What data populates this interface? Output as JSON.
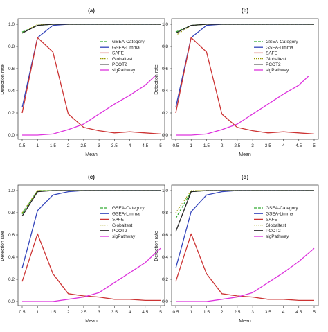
{
  "figure": {
    "ylabel": "Detection rate",
    "xlabel": "Mean"
  },
  "chart_data": [
    {
      "type": "line",
      "panel": "(a)",
      "title": "(a)",
      "xlabel": "Mean",
      "ylabel": "Detection rate",
      "x": [
        0.5,
        1,
        1.5,
        2,
        2.5,
        3,
        3.5,
        4,
        4.5,
        5
      ],
      "xticks": [
        "0.5",
        "1",
        "1.5",
        "2",
        "2.5",
        "3",
        "3.5",
        "4",
        "4.5",
        "5"
      ],
      "yticks": [
        "0.0",
        "0.2",
        "0.4",
        "0.6",
        "0.8",
        "1.0"
      ],
      "xlim": [
        0.5,
        5
      ],
      "ylim": [
        0,
        1
      ],
      "grid": false,
      "legend_position": "right",
      "series": [
        {
          "name": "GSEA-Category",
          "color": "#33aa33",
          "dash": "dashed",
          "values": [
            0.93,
            0.99,
            1.0,
            1.0,
            1.0,
            1.0,
            1.0,
            1.0,
            1.0,
            1.0
          ]
        },
        {
          "name": "GSEA-Limma",
          "color": "#3344bb",
          "dash": "solid",
          "values": [
            0.25,
            0.88,
            0.99,
            1.0,
            1.0,
            1.0,
            1.0,
            1.0,
            1.0,
            1.0
          ]
        },
        {
          "name": "SAFE",
          "color": "#cc3333",
          "dash": "solid",
          "values": [
            0.2,
            0.88,
            0.75,
            0.19,
            0.07,
            0.04,
            0.02,
            0.03,
            0.02,
            0.01
          ]
        },
        {
          "name": "Globaltest",
          "color": "#999900",
          "dash": "dotted",
          "values": [
            0.92,
            1.0,
            1.0,
            1.0,
            1.0,
            1.0,
            1.0,
            1.0,
            1.0,
            1.0
          ]
        },
        {
          "name": "PCOT2",
          "color": "#222222",
          "dash": "solid",
          "values": [
            0.92,
            0.99,
            1.0,
            1.0,
            1.0,
            1.0,
            1.0,
            1.0,
            1.0,
            1.0
          ]
        },
        {
          "name": "sigPathway",
          "color": "#dd33dd",
          "dash": "solid",
          "values": [
            0.0,
            0.0,
            0.01,
            0.05,
            0.1,
            0.19,
            0.28,
            0.36,
            0.45,
            0.58
          ]
        }
      ]
    },
    {
      "type": "line",
      "panel": "(b)",
      "title": "(b)",
      "xlabel": "Mean",
      "ylabel": "Detection rate",
      "x": [
        0.5,
        1,
        1.5,
        2,
        2.5,
        3,
        3.5,
        4,
        4.5,
        5
      ],
      "xticks": [
        "0.5",
        "1",
        "1.5",
        "2",
        "2.5",
        "3",
        "3.5",
        "4",
        "4.5",
        "5"
      ],
      "yticks": [
        "0.0",
        "0.2",
        "0.4",
        "0.6",
        "0.8",
        "1.0"
      ],
      "xlim": [
        0.5,
        5
      ],
      "ylim": [
        0,
        1
      ],
      "grid": false,
      "legend_position": "right",
      "series": [
        {
          "name": "GSEA-Category",
          "color": "#33aa33",
          "dash": "dashed",
          "values": [
            0.93,
            0.99,
            1.0,
            1.0,
            1.0,
            1.0,
            1.0,
            1.0,
            1.0,
            1.0
          ]
        },
        {
          "name": "GSEA-Limma",
          "color": "#3344bb",
          "dash": "solid",
          "values": [
            0.25,
            0.88,
            0.99,
            1.0,
            1.0,
            1.0,
            1.0,
            1.0,
            1.0,
            1.0
          ]
        },
        {
          "name": "SAFE",
          "color": "#cc3333",
          "dash": "solid",
          "values": [
            0.2,
            0.88,
            0.75,
            0.19,
            0.07,
            0.04,
            0.02,
            0.03,
            0.02,
            0.01
          ]
        },
        {
          "name": "Globaltest",
          "color": "#999900",
          "dash": "dotted",
          "values": [
            0.9,
            0.99,
            1.0,
            1.0,
            1.0,
            1.0,
            1.0,
            1.0,
            1.0,
            1.0
          ]
        },
        {
          "name": "PCOT2",
          "color": "#222222",
          "dash": "solid",
          "values": [
            0.92,
            0.99,
            1.0,
            1.0,
            1.0,
            1.0,
            1.0,
            1.0,
            1.0,
            1.0
          ]
        },
        {
          "name": "sigPathway",
          "color": "#dd33dd",
          "dash": "solid",
          "values": [
            0.0,
            0.0,
            0.01,
            0.05,
            0.1,
            0.19,
            0.28,
            0.37,
            0.45,
            0.58
          ]
        }
      ]
    },
    {
      "type": "line",
      "panel": "(c)",
      "title": "(c)",
      "xlabel": "Mean",
      "ylabel": "Detection rate",
      "x": [
        0.5,
        1,
        1.5,
        2,
        2.5,
        3,
        3.5,
        4,
        4.5,
        5
      ],
      "xticks": [
        "0.5",
        "1",
        "1.5",
        "2",
        "2.5",
        "3",
        "3.5",
        "4",
        "4.5",
        "5"
      ],
      "yticks": [
        "0.0",
        "0.2",
        "0.4",
        "0.6",
        "0.8",
        "1.0"
      ],
      "xlim": [
        0.5,
        5
      ],
      "ylim": [
        0,
        1
      ],
      "grid": false,
      "legend_position": "right",
      "series": [
        {
          "name": "GSEA-Category",
          "color": "#33aa33",
          "dash": "dashed",
          "values": [
            0.79,
            1.0,
            1.0,
            1.0,
            1.0,
            1.0,
            1.0,
            1.0,
            1.0,
            1.0
          ]
        },
        {
          "name": "GSEA-Limma",
          "color": "#3344bb",
          "dash": "solid",
          "values": [
            0.3,
            0.82,
            0.96,
            0.99,
            1.0,
            1.0,
            1.0,
            1.0,
            1.0,
            1.0
          ]
        },
        {
          "name": "SAFE",
          "color": "#cc3333",
          "dash": "solid",
          "values": [
            0.18,
            0.61,
            0.25,
            0.07,
            0.05,
            0.04,
            0.02,
            0.02,
            0.01,
            0.01
          ]
        },
        {
          "name": "Globaltest",
          "color": "#999900",
          "dash": "dotted",
          "values": [
            0.8,
            1.0,
            1.0,
            1.0,
            1.0,
            1.0,
            1.0,
            1.0,
            1.0,
            1.0
          ]
        },
        {
          "name": "PCOT2",
          "color": "#222222",
          "dash": "solid",
          "values": [
            0.77,
            0.99,
            1.0,
            1.0,
            1.0,
            1.0,
            1.0,
            1.0,
            1.0,
            1.0
          ]
        },
        {
          "name": "sigPathway",
          "color": "#dd33dd",
          "dash": "solid",
          "values": [
            0.0,
            0.0,
            0.0,
            0.02,
            0.04,
            0.08,
            0.17,
            0.26,
            0.35,
            0.48
          ]
        }
      ]
    },
    {
      "type": "line",
      "panel": "(d)",
      "title": "(d)",
      "xlabel": "Mean",
      "ylabel": "Detection rate",
      "x": [
        0.5,
        1,
        1.5,
        2,
        2.5,
        3,
        3.5,
        4,
        4.5,
        5
      ],
      "xticks": [
        "0.5",
        "1",
        "1.5",
        "2",
        "2.5",
        "3",
        "3.5",
        "4",
        "4.5",
        "5"
      ],
      "yticks": [
        "0.0",
        "0.2",
        "0.4",
        "0.6",
        "0.8",
        "1.0"
      ],
      "xlim": [
        0.5,
        5
      ],
      "ylim": [
        0,
        1
      ],
      "grid": false,
      "legend_position": "right",
      "series": [
        {
          "name": "GSEA-Category",
          "color": "#33aa33",
          "dash": "dashed",
          "values": [
            0.75,
            0.99,
            1.0,
            1.0,
            1.0,
            1.0,
            1.0,
            1.0,
            1.0,
            1.0
          ]
        },
        {
          "name": "GSEA-Limma",
          "color": "#3344bb",
          "dash": "solid",
          "values": [
            0.3,
            0.81,
            0.96,
            0.99,
            1.0,
            1.0,
            1.0,
            1.0,
            1.0,
            1.0
          ]
        },
        {
          "name": "SAFE",
          "color": "#cc3333",
          "dash": "solid",
          "values": [
            0.18,
            0.61,
            0.25,
            0.07,
            0.05,
            0.04,
            0.02,
            0.02,
            0.01,
            0.01
          ]
        },
        {
          "name": "Globaltest",
          "color": "#999900",
          "dash": "dotted",
          "values": [
            0.8,
            1.0,
            1.0,
            1.0,
            1.0,
            1.0,
            1.0,
            1.0,
            1.0,
            1.0
          ]
        },
        {
          "name": "PCOT2",
          "color": "#222222",
          "dash": "solid",
          "values": [
            0.63,
            0.99,
            1.0,
            1.0,
            1.0,
            1.0,
            1.0,
            1.0,
            1.0,
            1.0
          ]
        },
        {
          "name": "sigPathway",
          "color": "#dd33dd",
          "dash": "solid",
          "values": [
            0.0,
            0.0,
            0.0,
            0.02,
            0.04,
            0.08,
            0.17,
            0.26,
            0.36,
            0.48
          ]
        }
      ]
    }
  ]
}
